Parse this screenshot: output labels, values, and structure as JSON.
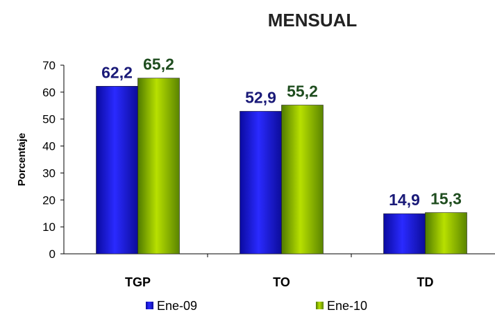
{
  "chart_data": {
    "type": "bar",
    "title": "MENSUAL",
    "ylabel": "Porcentaje",
    "xlabel": "",
    "categories": [
      "TGP",
      "TO",
      "TD"
    ],
    "series": [
      {
        "name": "Ene-09",
        "values": [
          62.2,
          52.9,
          14.9
        ],
        "labels": [
          "62,2",
          "52,9",
          "14,9"
        ],
        "color": "#1f1fd6",
        "label_color": "#1a1a78"
      },
      {
        "name": "Ene-10",
        "values": [
          65.2,
          55.2,
          15.3
        ],
        "labels": [
          "65,2",
          "55,2",
          "15,3"
        ],
        "color": "#8cb400",
        "label_color": "#1f4d1f"
      }
    ],
    "ylim": [
      0,
      70
    ],
    "yticks": [
      "0",
      "10",
      "20",
      "30",
      "40",
      "50",
      "60",
      "70"
    ],
    "grid": false,
    "legend": "bottom"
  }
}
